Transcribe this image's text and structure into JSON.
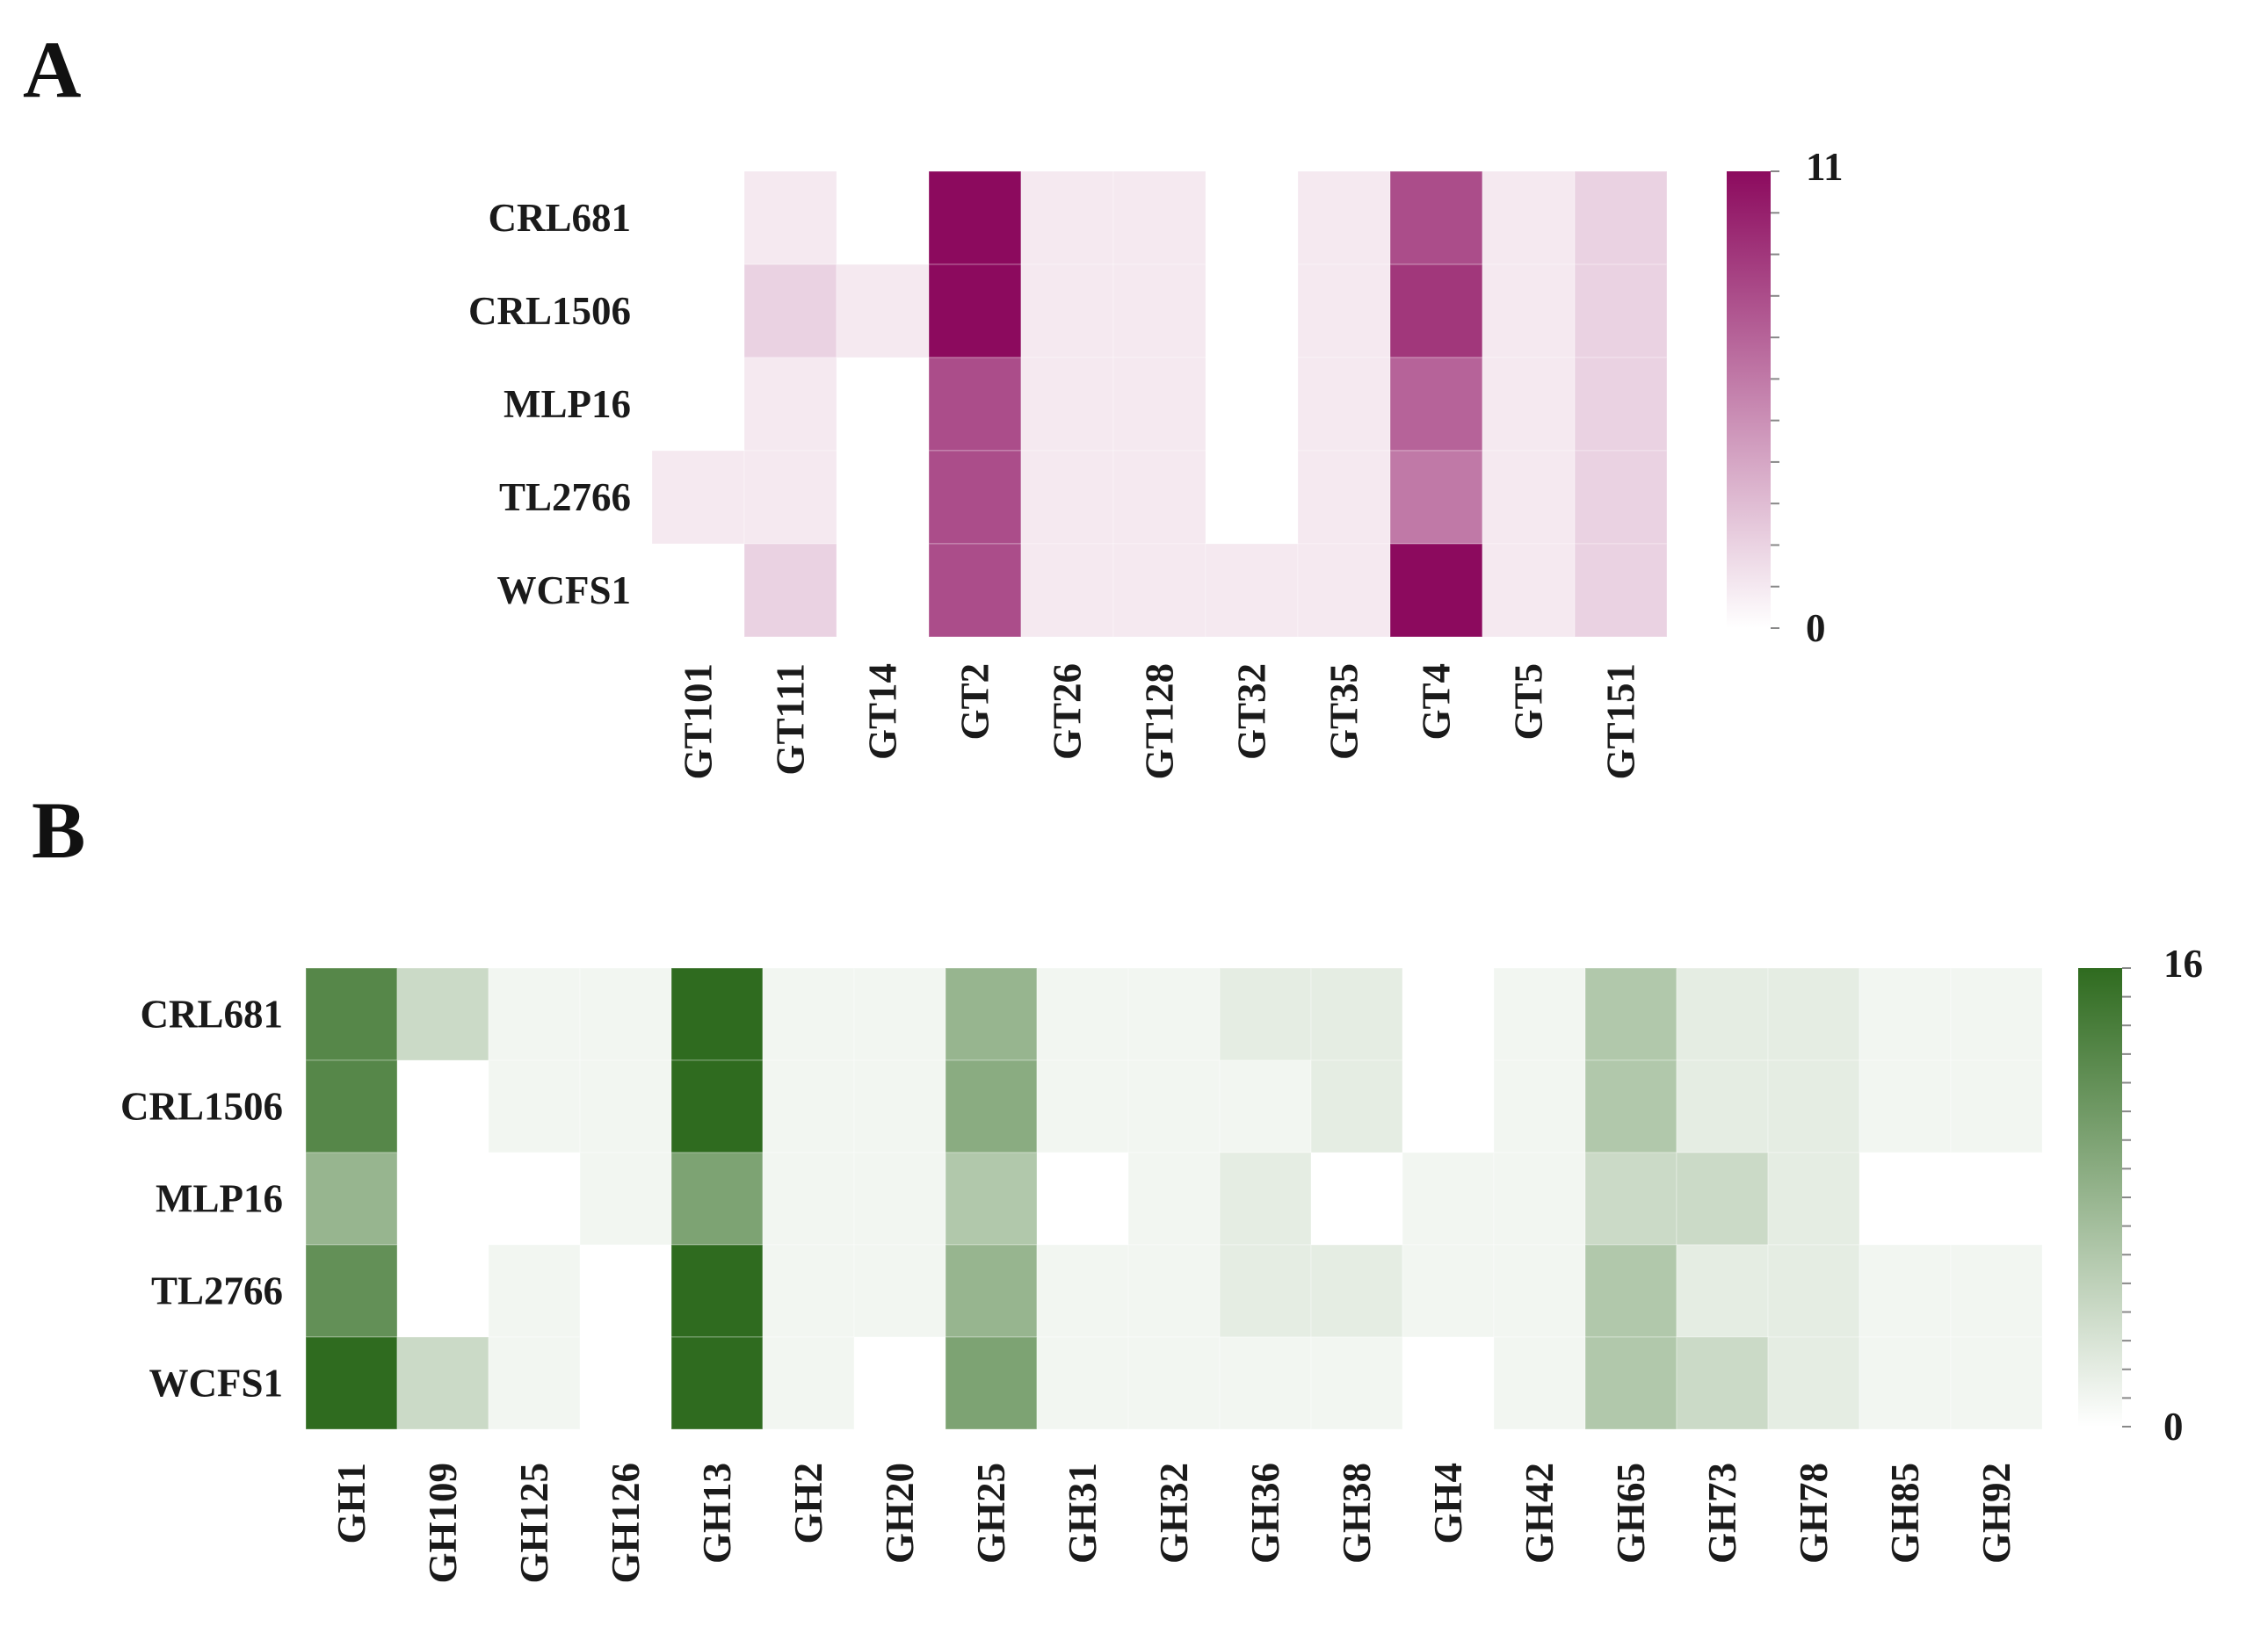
{
  "chart_data": [
    {
      "panel": "A",
      "type": "heatmap",
      "title": "",
      "rows": [
        "CRL681",
        "CRL1506",
        "MLP16",
        "TL2766",
        "WCFS1"
      ],
      "columns": [
        "GT101",
        "GT111",
        "GT14",
        "GT2",
        "GT26",
        "GT128",
        "GT32",
        "GT35",
        "GT4",
        "GT5",
        "GT151"
      ],
      "values": [
        [
          0,
          1,
          0,
          11,
          1,
          1,
          0,
          1,
          8,
          1,
          2
        ],
        [
          0,
          2,
          1,
          11,
          1,
          1,
          0,
          1,
          9,
          1,
          2
        ],
        [
          0,
          1,
          0,
          8,
          1,
          1,
          0,
          1,
          7,
          1,
          2
        ],
        [
          1,
          1,
          0,
          8,
          1,
          1,
          0,
          1,
          6,
          1,
          2
        ],
        [
          0,
          2,
          0,
          8,
          1,
          1,
          1,
          1,
          11,
          1,
          2
        ]
      ],
      "colorbar": {
        "min": 0,
        "max": 11,
        "min_label": "0",
        "max_label": "11",
        "low_color": "#ffffff",
        "high_color": "#8c0a5e"
      }
    },
    {
      "panel": "B",
      "type": "heatmap",
      "title": "",
      "rows": [
        "CRL681",
        "CRL1506",
        "MLP16",
        "TL2766",
        "WCFS1"
      ],
      "columns": [
        "GH1",
        "GH109",
        "GH125",
        "GH126",
        "GH13",
        "GH2",
        "GH20",
        "GH25",
        "GH31",
        "GH32",
        "GH36",
        "GH38",
        "GH4",
        "GH42",
        "GH65",
        "GH73",
        "GH78",
        "GH85",
        "GH92"
      ],
      "values": [
        [
          13,
          4,
          1,
          1,
          16,
          1,
          1,
          8,
          1,
          1,
          2,
          2,
          0,
          1,
          6,
          2,
          2,
          1,
          1
        ],
        [
          13,
          0,
          1,
          1,
          16,
          1,
          1,
          9,
          1,
          1,
          1,
          2,
          0,
          1,
          6,
          2,
          2,
          1,
          1
        ],
        [
          8,
          0,
          0,
          1,
          10,
          1,
          1,
          6,
          0,
          1,
          2,
          0,
          1,
          1,
          4,
          4,
          2,
          0,
          0
        ],
        [
          12,
          0,
          1,
          0,
          16,
          1,
          1,
          8,
          1,
          1,
          2,
          2,
          1,
          1,
          6,
          2,
          2,
          1,
          1
        ],
        [
          16,
          4,
          1,
          0,
          16,
          1,
          0,
          10,
          1,
          1,
          1,
          1,
          0,
          1,
          6,
          4,
          2,
          1,
          1
        ]
      ],
      "colorbar": {
        "min": 0,
        "max": 16,
        "min_label": "0",
        "max_label": "16",
        "low_color": "#ffffff",
        "high_color": "#2f6b1f"
      }
    }
  ]
}
